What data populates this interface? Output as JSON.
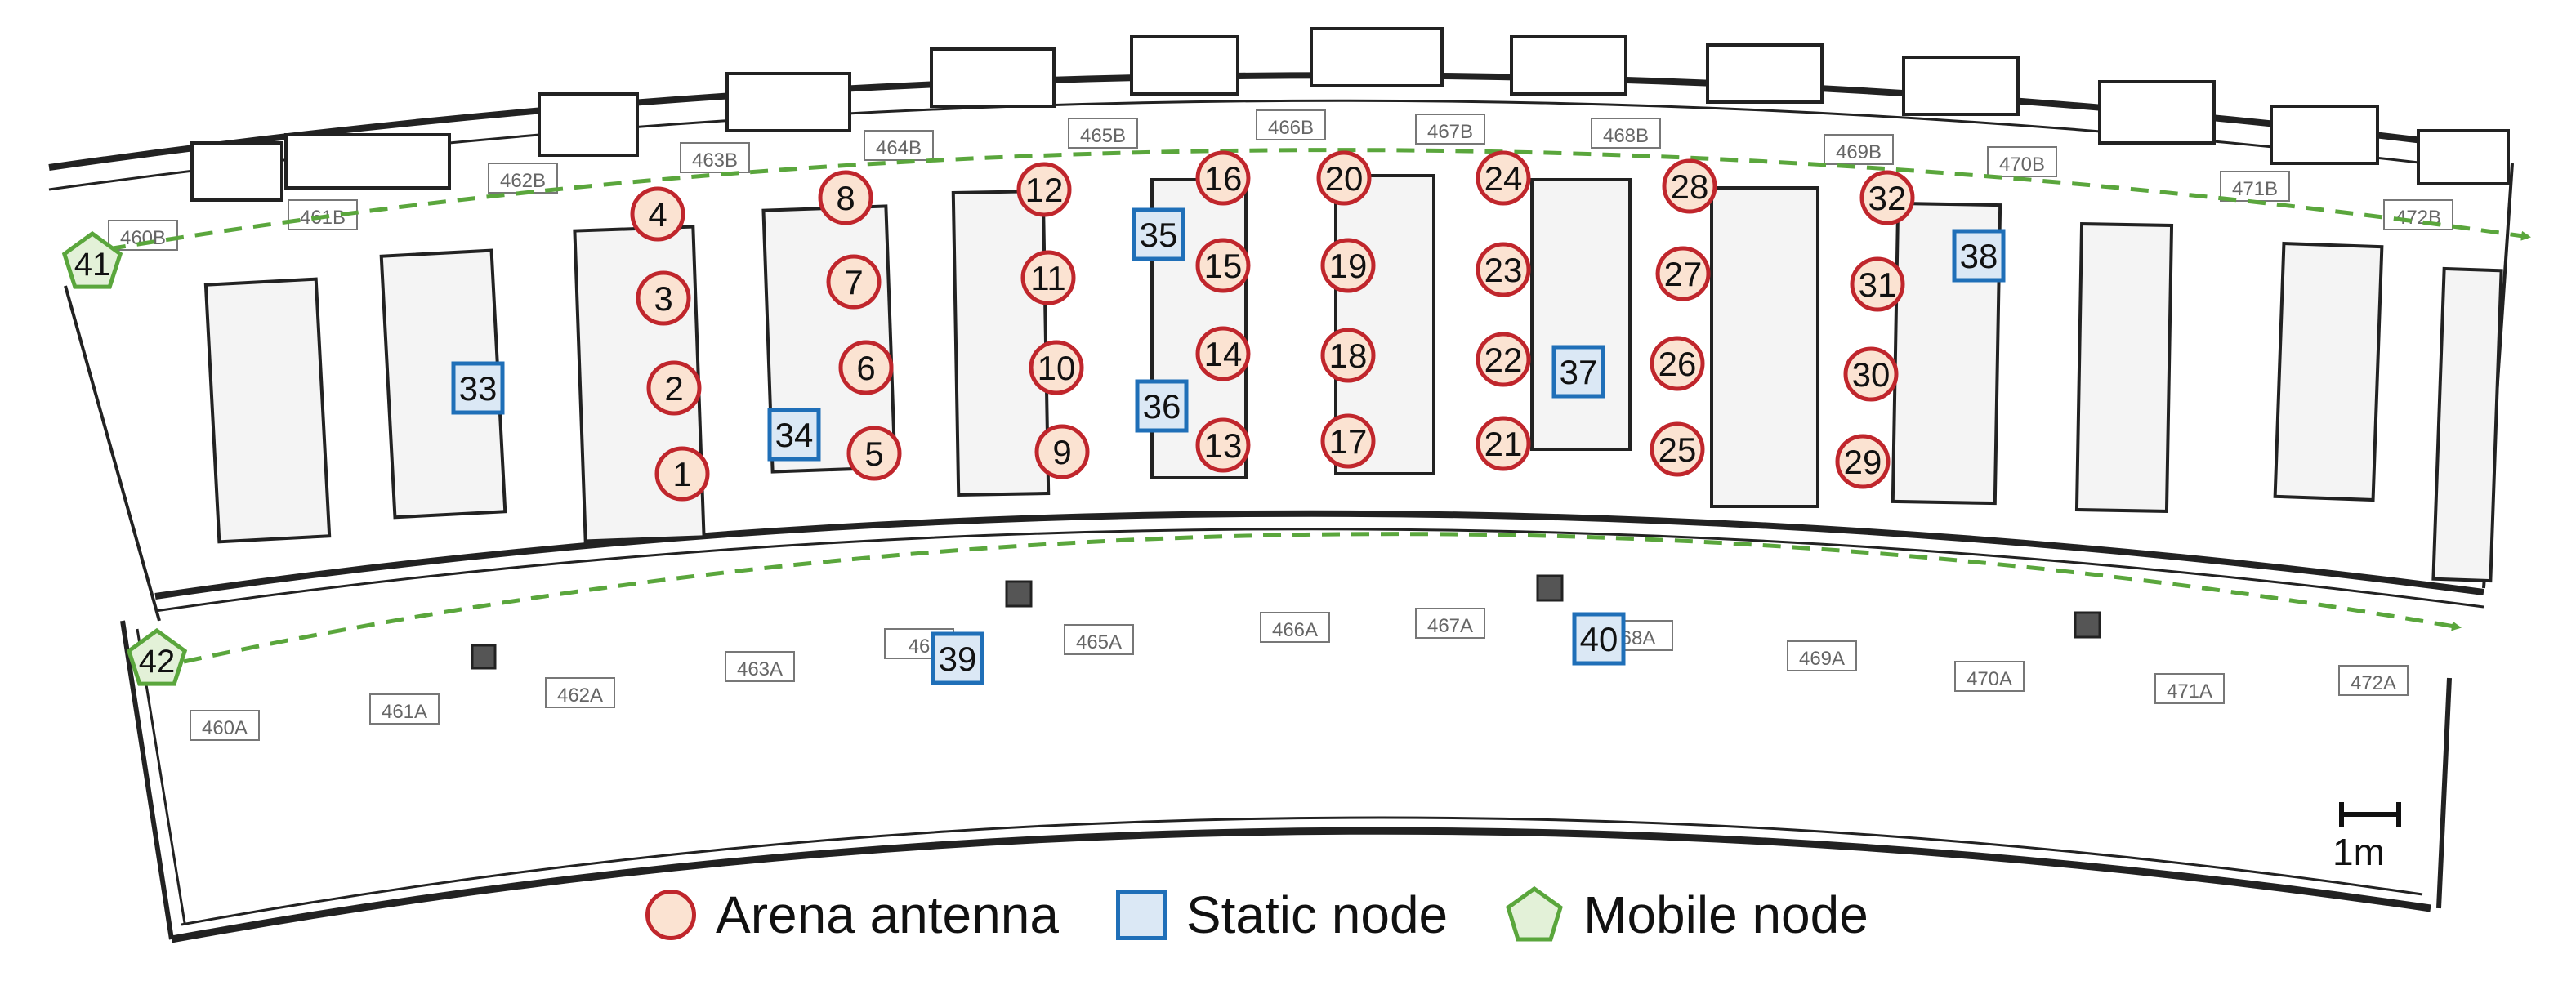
{
  "room_labels_upper": [
    "460B",
    "461B",
    "462B",
    "463B",
    "464B",
    "465B",
    "466B",
    "467B",
    "468B",
    "469B",
    "470B",
    "471B",
    "472B"
  ],
  "room_labels_lower": [
    "460A",
    "461A",
    "462A",
    "463A",
    "46",
    "465A",
    "466A",
    "467A",
    "68A",
    "469A",
    "470A",
    "471A",
    "472A"
  ],
  "antennas": [
    "1",
    "2",
    "3",
    "4",
    "5",
    "6",
    "7",
    "8",
    "9",
    "10",
    "11",
    "12",
    "13",
    "14",
    "15",
    "16",
    "17",
    "18",
    "19",
    "20",
    "21",
    "22",
    "23",
    "24",
    "25",
    "26",
    "27",
    "28",
    "29",
    "30",
    "31",
    "32"
  ],
  "static_nodes": [
    "33",
    "34",
    "35",
    "36",
    "37",
    "38",
    "39",
    "40"
  ],
  "mobile_nodes": [
    "41",
    "42"
  ],
  "legend": {
    "antenna_label": "Arena antenna",
    "static_label": "Static node",
    "mobile_label": "Mobile node"
  },
  "scale_label": "1m",
  "colors": {
    "antenna_stroke": "#c0262c",
    "antenna_fill": "#fbe3d2",
    "static_stroke": "#1f6fb8",
    "static_fill": "#dbe8f5",
    "mobile_stroke": "#5aa63c",
    "mobile_fill": "#e3f1d8",
    "path": "#5aa63c"
  }
}
